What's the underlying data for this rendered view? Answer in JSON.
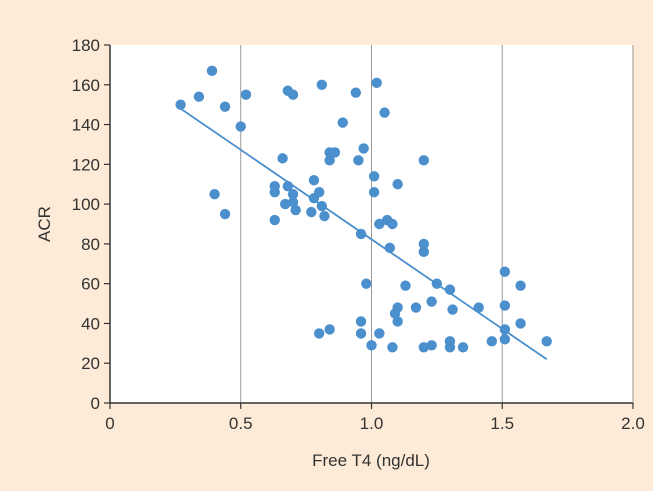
{
  "colors": {
    "background": "#fdebd8",
    "plot_background": "#ffffff",
    "grid": "#999999",
    "axis": "#333333",
    "point": "#4b8fcd",
    "trendline": "#4b8fcd"
  },
  "chart_data": {
    "type": "scatter",
    "xlabel": "Free T4 (ng/dL)",
    "ylabel": "ACR",
    "xlim": [
      0,
      2.0
    ],
    "ylim": [
      0,
      180
    ],
    "x_ticks": [
      0,
      0.5,
      1.0,
      1.5,
      2.0
    ],
    "x_tick_labels": [
      "0",
      "0.5",
      "1.0",
      "1.5",
      "2.0"
    ],
    "y_ticks": [
      0,
      20,
      40,
      60,
      80,
      100,
      120,
      140,
      160,
      180
    ],
    "y_tick_labels": [
      "0",
      "20",
      "40",
      "60",
      "80",
      "100",
      "120",
      "140",
      "160",
      "180"
    ],
    "grid": "vertical lines at x ticks",
    "legend": "none",
    "trendline": {
      "x": [
        0.27,
        1.67
      ],
      "y": [
        148,
        22
      ]
    },
    "points": [
      {
        "x": 0.27,
        "y": 150
      },
      {
        "x": 0.34,
        "y": 154
      },
      {
        "x": 0.39,
        "y": 167
      },
      {
        "x": 0.44,
        "y": 149
      },
      {
        "x": 0.52,
        "y": 155
      },
      {
        "x": 0.5,
        "y": 139
      },
      {
        "x": 0.4,
        "y": 105
      },
      {
        "x": 0.44,
        "y": 95
      },
      {
        "x": 0.68,
        "y": 157
      },
      {
        "x": 0.7,
        "y": 155
      },
      {
        "x": 0.81,
        "y": 160
      },
      {
        "x": 0.66,
        "y": 123
      },
      {
        "x": 0.63,
        "y": 109
      },
      {
        "x": 0.63,
        "y": 106
      },
      {
        "x": 0.63,
        "y": 92
      },
      {
        "x": 0.67,
        "y": 100
      },
      {
        "x": 0.68,
        "y": 109
      },
      {
        "x": 0.7,
        "y": 105
      },
      {
        "x": 0.7,
        "y": 101
      },
      {
        "x": 0.71,
        "y": 97
      },
      {
        "x": 0.78,
        "y": 112
      },
      {
        "x": 0.78,
        "y": 103
      },
      {
        "x": 0.8,
        "y": 106
      },
      {
        "x": 0.77,
        "y": 96
      },
      {
        "x": 0.81,
        "y": 99
      },
      {
        "x": 0.82,
        "y": 94
      },
      {
        "x": 0.84,
        "y": 126
      },
      {
        "x": 0.84,
        "y": 122
      },
      {
        "x": 0.86,
        "y": 126
      },
      {
        "x": 0.89,
        "y": 141
      },
      {
        "x": 0.94,
        "y": 156
      },
      {
        "x": 0.95,
        "y": 122
      },
      {
        "x": 0.97,
        "y": 128
      },
      {
        "x": 1.02,
        "y": 161
      },
      {
        "x": 1.05,
        "y": 146
      },
      {
        "x": 1.01,
        "y": 114
      },
      {
        "x": 1.01,
        "y": 106
      },
      {
        "x": 1.1,
        "y": 110
      },
      {
        "x": 0.96,
        "y": 85
      },
      {
        "x": 1.03,
        "y": 90
      },
      {
        "x": 1.06,
        "y": 92
      },
      {
        "x": 1.08,
        "y": 90
      },
      {
        "x": 1.07,
        "y": 78
      },
      {
        "x": 1.2,
        "y": 122
      },
      {
        "x": 1.2,
        "y": 80
      },
      {
        "x": 1.2,
        "y": 76
      },
      {
        "x": 0.98,
        "y": 60
      },
      {
        "x": 1.13,
        "y": 59
      },
      {
        "x": 1.25,
        "y": 60
      },
      {
        "x": 1.3,
        "y": 57
      },
      {
        "x": 1.23,
        "y": 51
      },
      {
        "x": 1.17,
        "y": 48
      },
      {
        "x": 1.1,
        "y": 48
      },
      {
        "x": 1.09,
        "y": 45
      },
      {
        "x": 1.1,
        "y": 41
      },
      {
        "x": 1.31,
        "y": 47
      },
      {
        "x": 0.96,
        "y": 41
      },
      {
        "x": 0.96,
        "y": 35
      },
      {
        "x": 0.8,
        "y": 35
      },
      {
        "x": 0.84,
        "y": 37
      },
      {
        "x": 1.03,
        "y": 35
      },
      {
        "x": 1.0,
        "y": 29
      },
      {
        "x": 1.08,
        "y": 28
      },
      {
        "x": 1.2,
        "y": 28
      },
      {
        "x": 1.23,
        "y": 29
      },
      {
        "x": 1.3,
        "y": 31
      },
      {
        "x": 1.3,
        "y": 28
      },
      {
        "x": 1.35,
        "y": 28
      },
      {
        "x": 1.41,
        "y": 48
      },
      {
        "x": 1.51,
        "y": 66
      },
      {
        "x": 1.51,
        "y": 49
      },
      {
        "x": 1.57,
        "y": 59
      },
      {
        "x": 1.51,
        "y": 37
      },
      {
        "x": 1.57,
        "y": 40
      },
      {
        "x": 1.51,
        "y": 32
      },
      {
        "x": 1.46,
        "y": 31
      },
      {
        "x": 1.67,
        "y": 31
      }
    ]
  }
}
